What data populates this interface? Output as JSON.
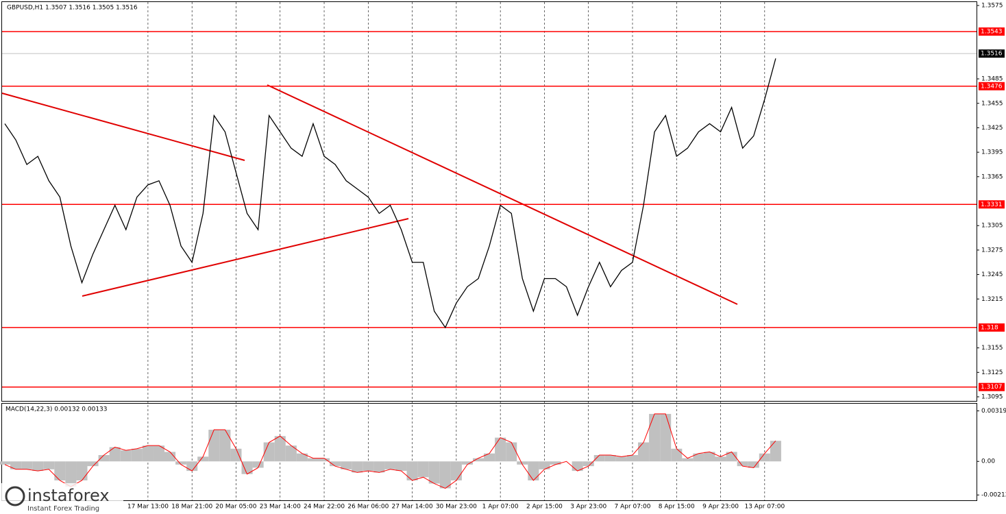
{
  "chart_data": [
    {
      "type": "line",
      "title": "GBPUSD,H1  1.3507 1.3516 1.3505 1.3516",
      "color": "#000000",
      "categories": [
        null,
        null,
        null,
        null,
        null,
        null,
        null,
        null,
        null,
        null,
        null,
        null,
        null,
        "17 Mar 13:00",
        null,
        null,
        null,
        "18 Mar 21:00",
        null,
        null,
        null,
        "20 Mar 05:00",
        null,
        null,
        null,
        "23 Mar 14:00",
        null,
        null,
        null,
        "24 Mar 22:00",
        null,
        null,
        null,
        "26 Mar 06:00",
        null,
        null,
        null,
        "27 Mar 14:00",
        null,
        null,
        null,
        "30 Mar 23:00",
        null,
        null,
        null,
        "1 Apr 07:00",
        null,
        null,
        null,
        "2 Apr 15:00",
        null,
        null,
        null,
        "3 Apr 23:00",
        null,
        null,
        null,
        "7 Apr 07:00",
        null,
        null,
        null,
        "8 Apr 15:00",
        null,
        null,
        null,
        "9 Apr 23:00",
        null,
        null,
        null,
        "13 Apr 07:00",
        null
      ],
      "values": [
        1.343,
        1.341,
        1.338,
        1.339,
        1.336,
        1.334,
        1.328,
        1.3235,
        1.327,
        1.33,
        1.333,
        1.33,
        1.334,
        1.3355,
        1.336,
        1.333,
        1.328,
        1.326,
        1.332,
        1.344,
        1.342,
        1.337,
        1.332,
        1.33,
        1.344,
        1.342,
        1.34,
        1.339,
        1.343,
        1.339,
        1.338,
        1.336,
        1.335,
        1.334,
        1.332,
        1.333,
        1.33,
        1.326,
        1.326,
        1.32,
        1.318,
        1.321,
        1.323,
        1.324,
        1.328,
        1.333,
        1.332,
        1.324,
        1.32,
        1.324,
        1.324,
        1.323,
        1.3195,
        1.323,
        1.326,
        1.323,
        1.325,
        1.326,
        1.333,
        1.342,
        1.344,
        1.339,
        1.34,
        1.342,
        1.343,
        1.342,
        1.345,
        1.34,
        1.3415,
        1.346,
        1.351
      ],
      "ylim": [
        1.3095,
        1.3575
      ],
      "yticks": [
        1.3575,
        1.3485,
        1.3455,
        1.3425,
        1.3395,
        1.3365,
        1.3305,
        1.3275,
        1.3245,
        1.3215,
        1.3155,
        1.3125,
        1.3095
      ],
      "levels": [
        1.3543,
        1.3476,
        1.3331,
        1.318,
        1.3107
      ],
      "level_color": "#ff0000",
      "current_price": 1.3516
    },
    {
      "type": "histogram",
      "title": "MACD(14,22,3) 0.00132 0.00133",
      "color": "#c0c0c0",
      "line_color": "#ff0000",
      "values": [
        -0.0002,
        -0.0005,
        -0.0005,
        -0.0006,
        -0.0005,
        -0.0012,
        -0.0016,
        -0.0012,
        -0.0003,
        0.0004,
        0.0009,
        0.0007,
        0.0008,
        0.001,
        0.001,
        0.0006,
        -0.0002,
        -0.0006,
        0.0003,
        0.002,
        0.002,
        0.0008,
        -0.0008,
        -0.0004,
        0.0012,
        0.0016,
        0.001,
        0.0005,
        0.0002,
        0.0002,
        -0.0003,
        -0.0005,
        -0.0007,
        -0.0006,
        -0.0007,
        -0.0005,
        -0.0006,
        -0.0012,
        -0.001,
        -0.0014,
        -0.0017,
        -0.0012,
        -0.0002,
        0.0002,
        0.0005,
        0.0015,
        0.0012,
        -0.0002,
        -0.0012,
        -0.0005,
        -0.0002,
        0,
        -0.0006,
        -0.0003,
        0.0004,
        0.0004,
        0.0003,
        0.0004,
        0.0012,
        0.003,
        0.003,
        0.0008,
        0.0002,
        0.0005,
        0.0006,
        0.0003,
        0.0006,
        -0.0003,
        -0.0004,
        0.0005,
        0.0013
      ],
      "ylim": [
        -0.00224,
        0.00343
      ],
      "yticks": [
        0.00319,
        {
          "value": 0,
          "label": "0.00"
        },
        -0.00212
      ]
    }
  ],
  "branding": {
    "name": "instaforex",
    "tagline": "Instant Forex Trading"
  }
}
